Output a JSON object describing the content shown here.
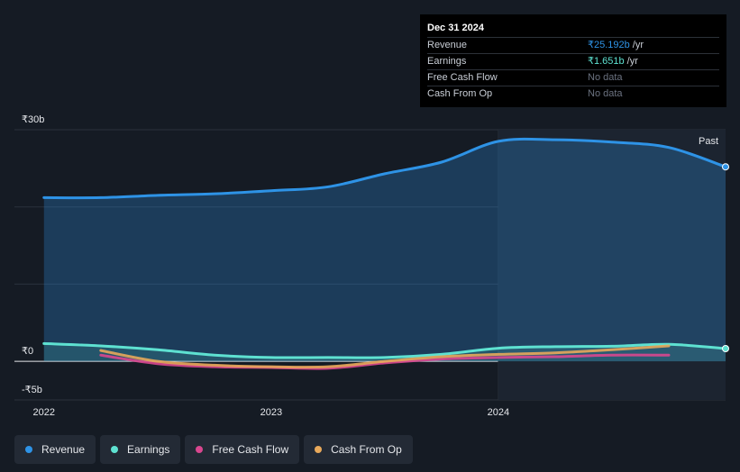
{
  "tooltip": {
    "date": "Dec 31 2024",
    "rows": [
      {
        "label": "Revenue",
        "value": "₹25.192b",
        "unit": "/yr",
        "color": "#2e93e6"
      },
      {
        "label": "Earnings",
        "value": "₹1.651b",
        "unit": "/yr",
        "color": "#5ee1d1"
      },
      {
        "label": "Free Cash Flow",
        "value": "No data",
        "unit": "",
        "color": ""
      },
      {
        "label": "Cash From Op",
        "value": "No data",
        "unit": "",
        "color": ""
      }
    ]
  },
  "legend": [
    {
      "label": "Revenue",
      "color": "#2e93e6"
    },
    {
      "label": "Earnings",
      "color": "#5ee1d1"
    },
    {
      "label": "Free Cash Flow",
      "color": "#d9478f"
    },
    {
      "label": "Cash From Op",
      "color": "#e8a95b"
    }
  ],
  "chart_data": {
    "type": "area",
    "currency": "₹",
    "past_label": "Past",
    "y_ticks": [
      {
        "value": 30,
        "label": "₹30b"
      },
      {
        "value": 0,
        "label": "₹0"
      },
      {
        "value": -5,
        "label": "-₹5b"
      }
    ],
    "ylim": [
      -5,
      30
    ],
    "x_ticks": [
      {
        "value": 2022.0,
        "label": "2022"
      },
      {
        "value": 2023.0,
        "label": "2023"
      },
      {
        "value": 2024.0,
        "label": "2024"
      }
    ],
    "xlim": [
      2021.87,
      2025.0
    ],
    "forecast_start": 2024.0,
    "series": [
      {
        "name": "Revenue",
        "color": "#2e93e6",
        "filled": true,
        "x": [
          2022.0,
          2022.25,
          2022.5,
          2022.75,
          2023.0,
          2023.25,
          2023.5,
          2023.75,
          2024.0,
          2024.25,
          2024.5,
          2024.75,
          2025.0
        ],
        "y": [
          21.2,
          21.2,
          21.5,
          21.7,
          22.1,
          22.6,
          24.3,
          25.8,
          28.5,
          28.7,
          28.4,
          27.7,
          25.19
        ]
      },
      {
        "name": "Earnings",
        "color": "#5ee1d1",
        "filled": false,
        "x": [
          2022.0,
          2022.25,
          2022.5,
          2022.75,
          2023.0,
          2023.25,
          2023.5,
          2023.75,
          2024.0,
          2024.25,
          2024.5,
          2024.75,
          2025.0
        ],
        "y": [
          2.3,
          2.0,
          1.5,
          0.8,
          0.5,
          0.5,
          0.5,
          0.9,
          1.7,
          1.9,
          1.95,
          2.2,
          1.651
        ]
      },
      {
        "name": "Free Cash Flow",
        "color": "#d9478f",
        "filled": false,
        "x": [
          2022.25,
          2022.5,
          2022.75,
          2023.0,
          2023.25,
          2023.5,
          2023.75,
          2024.0,
          2024.25,
          2024.5,
          2024.75
        ],
        "y": [
          0.8,
          -0.3,
          -0.7,
          -0.8,
          -0.9,
          -0.2,
          0.3,
          0.5,
          0.6,
          0.8,
          0.8
        ]
      },
      {
        "name": "Cash From Op",
        "color": "#e8a95b",
        "filled": false,
        "x": [
          2022.25,
          2022.5,
          2022.75,
          2023.0,
          2023.25,
          2023.5,
          2023.75,
          2024.0,
          2024.25,
          2024.5,
          2024.75
        ],
        "y": [
          1.4,
          0.0,
          -0.5,
          -0.7,
          -0.7,
          0.0,
          0.6,
          0.9,
          1.1,
          1.5,
          2.0
        ]
      }
    ]
  }
}
